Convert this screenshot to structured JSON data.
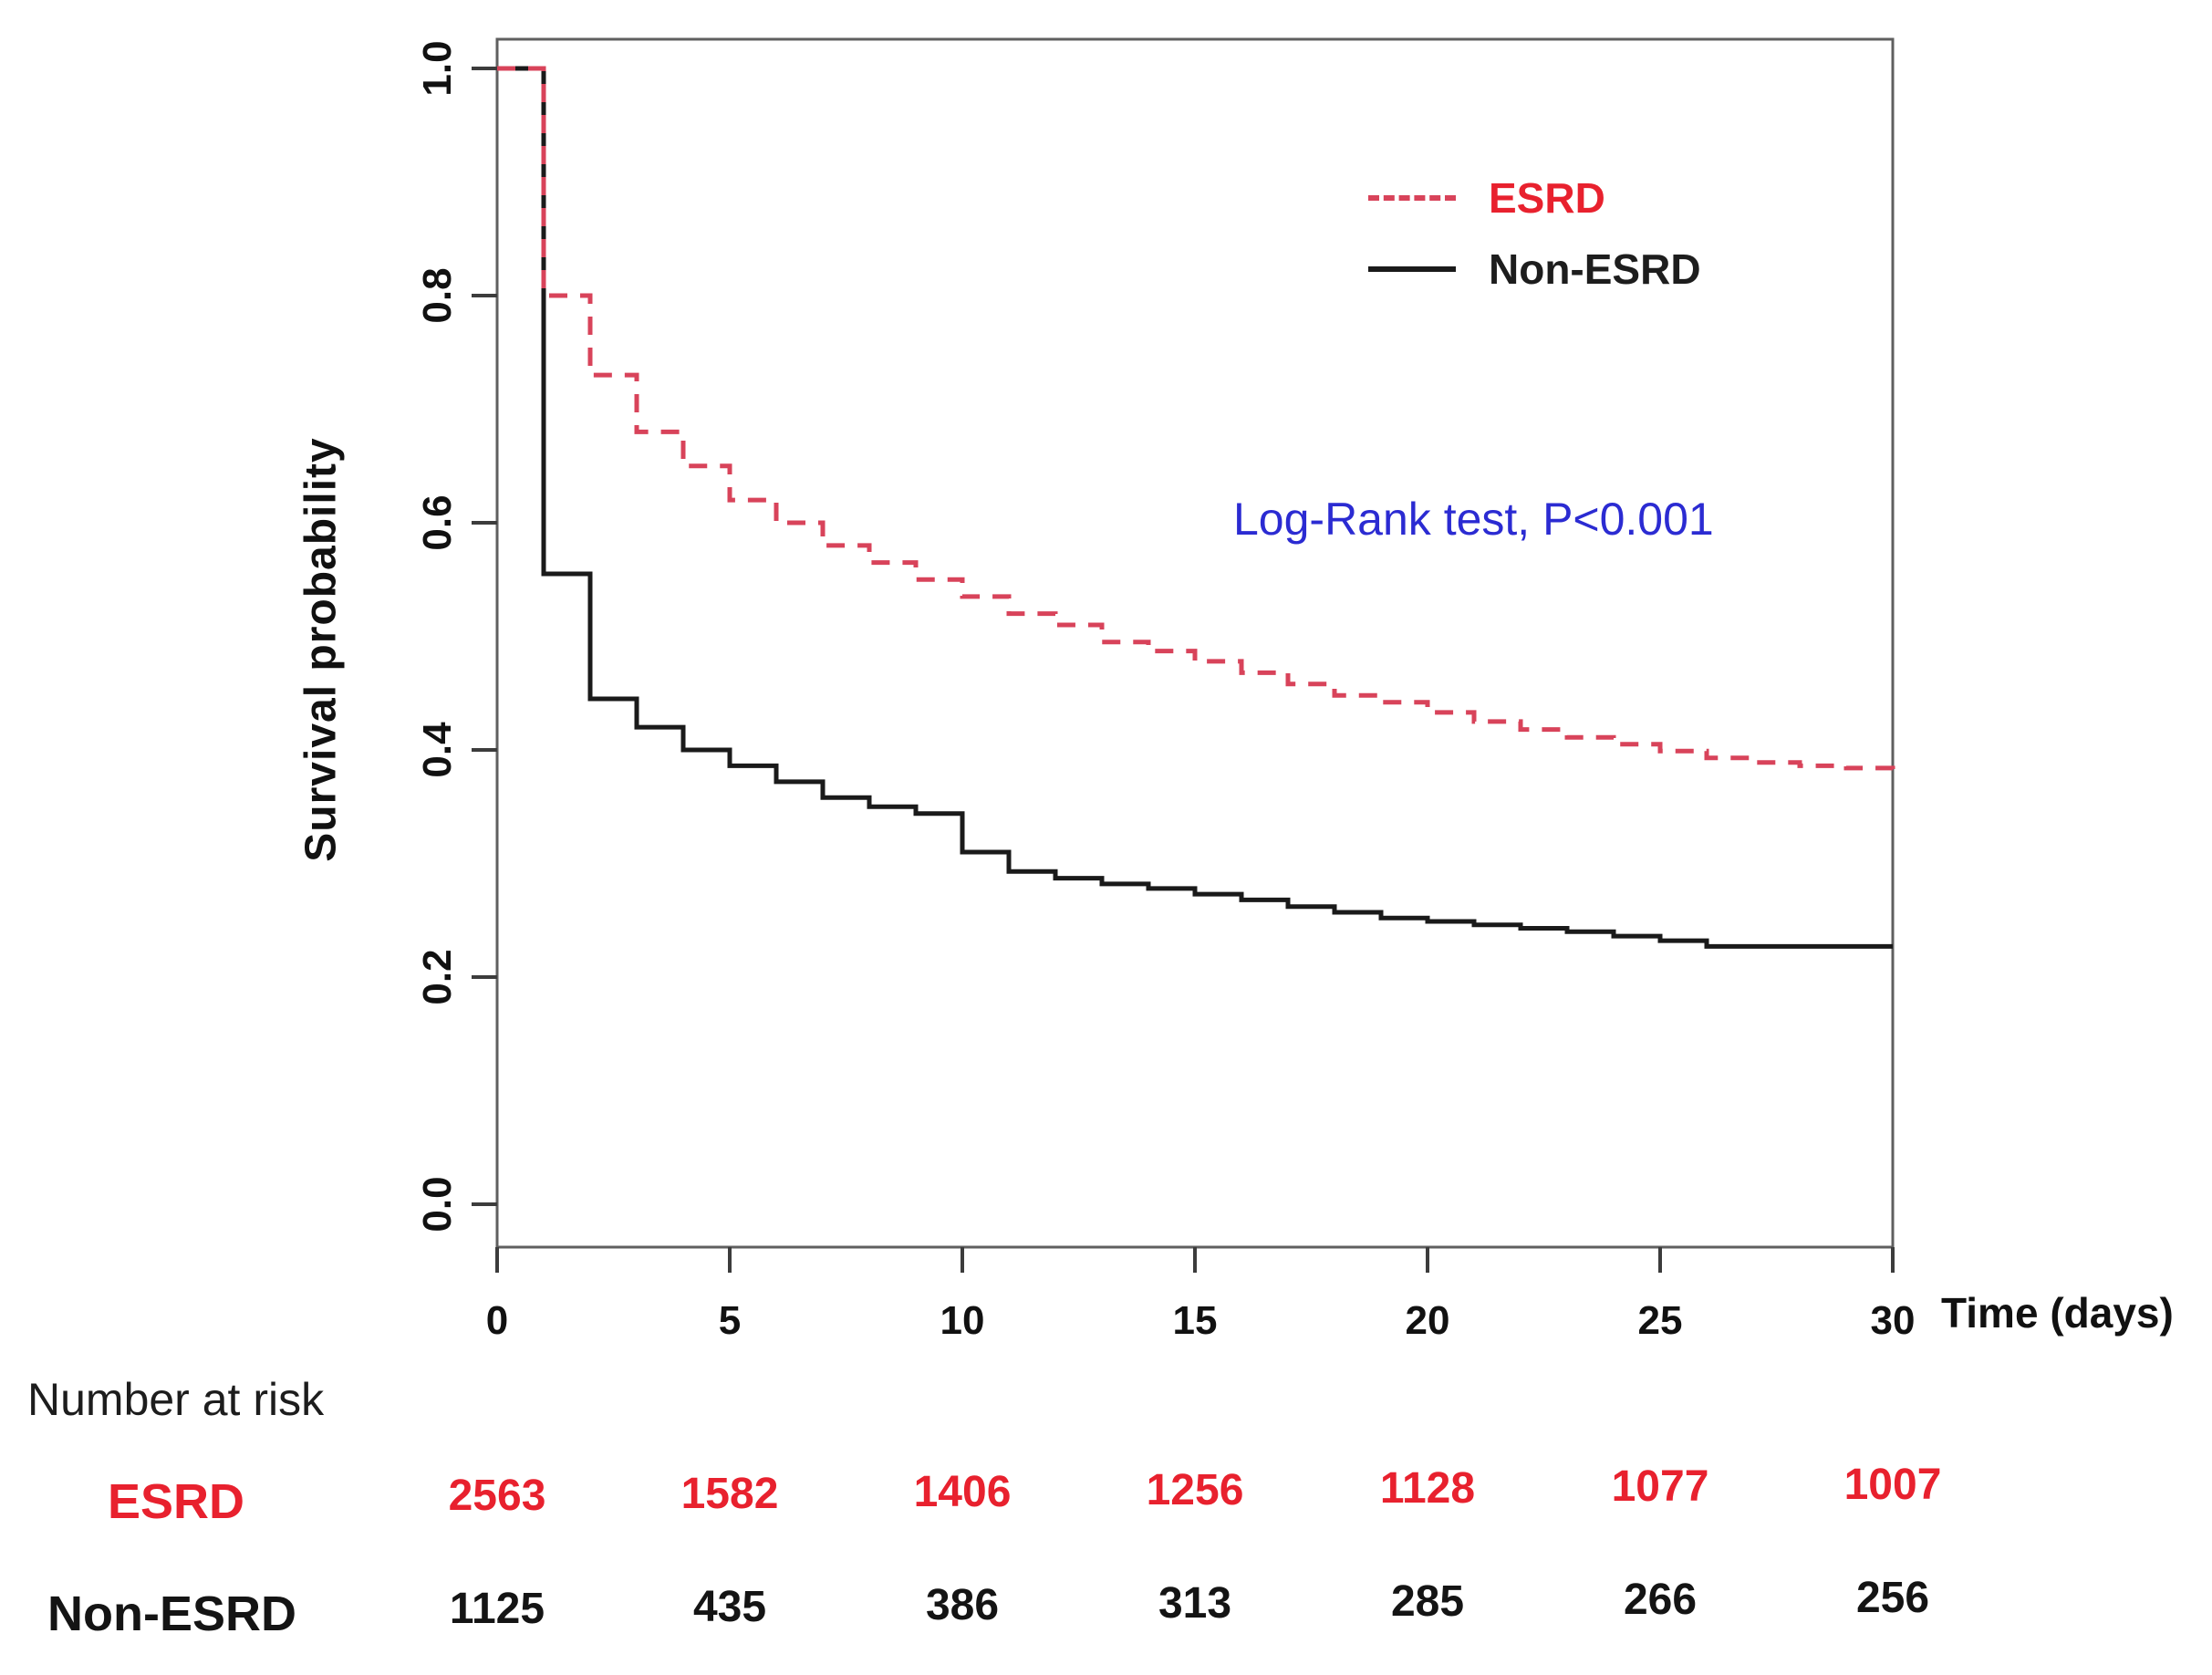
{
  "chart_data": {
    "type": "line",
    "subtype": "kaplan-meier-step",
    "xlabel": "Time (days)",
    "ylabel": "Survival probability",
    "xlim": [
      0,
      30
    ],
    "ylim": [
      0.0,
      1.0
    ],
    "x_ticks": [
      "0",
      "5",
      "10",
      "15",
      "20",
      "25",
      "30"
    ],
    "y_ticks": [
      "0.0",
      "0.2",
      "0.4",
      "0.6",
      "0.8",
      "1.0"
    ],
    "grid": false,
    "legend_position": "top-right-inside",
    "annotation": {
      "text": "Log-Rank test, P<0.001",
      "color": "#2b2bd2"
    },
    "legend": [
      {
        "label": "ESRD",
        "color": "#e8212e",
        "dashed": true
      },
      {
        "label": "Non-ESRD",
        "color": "#1d1d1d",
        "dashed": false
      }
    ],
    "series": [
      {
        "name": "ESRD",
        "color": "#d8435a",
        "dashed": true,
        "x": [
          0,
          1,
          2,
          3,
          4,
          5,
          6,
          7,
          8,
          9,
          10,
          11,
          12,
          13,
          14,
          15,
          16,
          17,
          18,
          19,
          20,
          21,
          22,
          23,
          24,
          25,
          26,
          27,
          28,
          29,
          30
        ],
        "y": [
          1.0,
          0.8,
          0.73,
          0.68,
          0.65,
          0.62,
          0.6,
          0.58,
          0.565,
          0.55,
          0.535,
          0.52,
          0.51,
          0.495,
          0.487,
          0.478,
          0.468,
          0.458,
          0.448,
          0.442,
          0.433,
          0.425,
          0.418,
          0.411,
          0.405,
          0.399,
          0.393,
          0.389,
          0.386,
          0.384,
          0.383
        ]
      },
      {
        "name": "Non-ESRD",
        "color": "#1a1a1a",
        "dashed": false,
        "x": [
          0,
          1,
          2,
          3,
          4,
          5,
          6,
          7,
          8,
          9,
          10,
          11,
          12,
          13,
          14,
          15,
          16,
          17,
          18,
          19,
          20,
          21,
          22,
          23,
          24,
          25,
          26,
          27,
          28,
          29,
          30
        ],
        "y": [
          1.0,
          0.555,
          0.445,
          0.42,
          0.4,
          0.386,
          0.372,
          0.358,
          0.35,
          0.344,
          0.31,
          0.293,
          0.287,
          0.282,
          0.278,
          0.273,
          0.268,
          0.262,
          0.257,
          0.252,
          0.249,
          0.246,
          0.243,
          0.24,
          0.236,
          0.232,
          0.227,
          0.227,
          0.227,
          0.227,
          0.227
        ]
      }
    ],
    "risk_table": {
      "title": "Number at risk",
      "times": [
        0,
        5,
        10,
        15,
        20,
        25,
        30
      ],
      "rows": [
        {
          "label": "ESRD",
          "color": "#e8212e",
          "values": [
            "2563",
            "1582",
            "1406",
            "1256",
            "1128",
            "1077",
            "1007"
          ]
        },
        {
          "label": "Non-ESRD",
          "color": "#141414",
          "values": [
            "1125",
            "435",
            "386",
            "313",
            "285",
            "266",
            "256"
          ]
        }
      ]
    }
  }
}
